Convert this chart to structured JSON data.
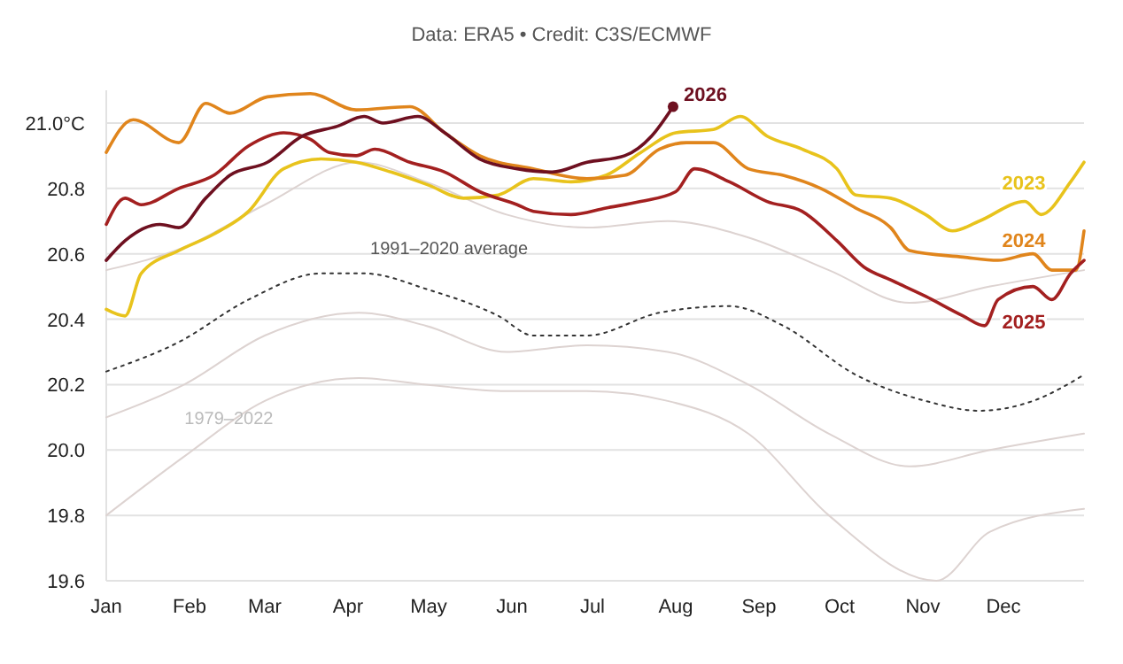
{
  "chart_data": {
    "type": "line",
    "subtitle": "Data: ERA5 • Credit: C3S/ECMWF",
    "xlim": [
      "--01-01",
      "--12-31"
    ],
    "xticks": [
      {
        "value": "--01-01",
        "label": "Jan"
      },
      {
        "value": "--02-01",
        "label": "Feb"
      },
      {
        "value": "--03-01",
        "label": "Mar"
      },
      {
        "value": "--04-01",
        "label": "Apr"
      },
      {
        "value": "--05-01",
        "label": "May"
      },
      {
        "value": "--06-01",
        "label": "Jun"
      },
      {
        "value": "--07-01",
        "label": "Jul"
      },
      {
        "value": "--08-01",
        "label": "Aug"
      },
      {
        "value": "--09-01",
        "label": "Sep"
      },
      {
        "value": "--10-01",
        "label": "Oct"
      },
      {
        "value": "--11-01",
        "label": "Nov"
      },
      {
        "value": "--12-01",
        "label": "Dec"
      }
    ],
    "ylim": [
      19.6,
      21.1
    ],
    "yticks": [
      {
        "value": 19.6,
        "label": "19.6"
      },
      {
        "value": 19.8,
        "label": "19.8"
      },
      {
        "value": 20.0,
        "label": "20.0"
      },
      {
        "value": 20.2,
        "label": "20.2"
      },
      {
        "value": 20.4,
        "label": "20.4"
      },
      {
        "value": 20.6,
        "label": "20.6"
      },
      {
        "value": 20.8,
        "label": "20.8"
      },
      {
        "value": 21.0,
        "label": "21.0°C"
      }
    ],
    "grid": "y",
    "annotations": [
      "1991–2020 average",
      "1979–2022"
    ],
    "series": [
      {
        "color": "#ddd3d1",
        "x": [
          "--01-01",
          "--01-30",
          "--03-01",
          "--04-05",
          "--04-30",
          "--05-30",
          "--06-29",
          "--07-29",
          "--08-28",
          "--09-27",
          "--10-27",
          "--11-26",
          "--12-31"
        ],
        "values": [
          20.55,
          20.62,
          20.75,
          20.88,
          20.82,
          20.72,
          20.68,
          20.7,
          20.65,
          20.55,
          20.45,
          20.5,
          20.55
        ]
      },
      {
        "color": "#ddd3d1",
        "x": [
          "--01-01",
          "--01-30",
          "--03-01",
          "--04-05",
          "--04-30",
          "--05-30",
          "--06-29",
          "--07-29",
          "--08-28",
          "--09-27",
          "--10-27",
          "--11-26",
          "--12-31"
        ],
        "values": [
          20.1,
          20.2,
          20.35,
          20.42,
          20.38,
          20.3,
          20.32,
          20.3,
          20.2,
          20.05,
          19.95,
          20.0,
          20.05
        ]
      },
      {
        "color": "#ddd3d1",
        "x": [
          "--01-01",
          "--01-30",
          "--03-01",
          "--04-05",
          "--04-30",
          "--05-30",
          "--06-29",
          "--07-29",
          "--08-28",
          "--09-27",
          "--11-06",
          "--11-26",
          "--12-31"
        ],
        "values": [
          19.8,
          19.98,
          20.15,
          20.22,
          20.2,
          20.18,
          20.18,
          20.15,
          20.05,
          19.8,
          19.6,
          19.75,
          19.82
        ]
      },
      {
        "color": "#333333",
        "line_style": "dotted",
        "x": [
          "--01-01",
          "--01-28",
          "--02-23",
          "--03-22",
          "--04-07",
          "--05-01",
          "--05-27",
          "--06-09",
          "--06-29",
          "--07-26",
          "--08-21",
          "--09-10",
          "--10-07",
          "--11-02",
          "--11-22",
          "--12-12",
          "--12-31"
        ],
        "values": [
          20.24,
          20.33,
          20.46,
          20.54,
          20.54,
          20.49,
          20.41,
          20.35,
          20.35,
          20.42,
          20.44,
          20.38,
          20.23,
          20.15,
          20.12,
          20.15,
          20.23
        ]
      },
      {
        "name": "2023",
        "color": "#e8c31c",
        "x": [
          "--01-01",
          "--01-08",
          "--01-14",
          "--01-28",
          "--02-10",
          "--02-23",
          "--03-08",
          "--03-22",
          "--04-04",
          "--04-17",
          "--05-01",
          "--05-14",
          "--05-27",
          "--06-09",
          "--06-23",
          "--07-06",
          "--07-19",
          "--08-01",
          "--08-15",
          "--08-25",
          "--09-04",
          "--09-17",
          "--09-30",
          "--10-07",
          "--10-20",
          "--11-02",
          "--11-12",
          "--11-22",
          "--12-09",
          "--12-15",
          "--12-26",
          "--12-31"
        ],
        "values": [
          20.43,
          20.41,
          20.54,
          20.61,
          20.66,
          20.73,
          20.86,
          20.89,
          20.88,
          20.85,
          20.81,
          20.77,
          20.78,
          20.83,
          20.82,
          20.84,
          20.91,
          20.97,
          20.98,
          21.02,
          20.96,
          20.92,
          20.86,
          20.78,
          20.77,
          20.72,
          20.67,
          20.7,
          20.76,
          20.72,
          20.82,
          20.88
        ]
      },
      {
        "name": "2024",
        "color": "#e0851c",
        "x": [
          "--01-01",
          "--01-11",
          "--01-28",
          "--02-07",
          "--02-16",
          "--03-02",
          "--03-18",
          "--04-04",
          "--04-24",
          "--05-07",
          "--05-20",
          "--06-09",
          "--06-29",
          "--07-13",
          "--07-26",
          "--08-05",
          "--08-15",
          "--08-28",
          "--09-10",
          "--09-24",
          "--10-07",
          "--10-20",
          "--10-27",
          "--11-16",
          "--11-29",
          "--12-12",
          "--12-19",
          "--12-28",
          "--12-31"
        ],
        "values": [
          20.91,
          21.01,
          20.94,
          21.06,
          21.03,
          21.08,
          21.09,
          21.04,
          21.05,
          20.97,
          20.9,
          20.86,
          20.83,
          20.84,
          20.92,
          20.94,
          20.94,
          20.86,
          20.84,
          20.8,
          20.74,
          20.68,
          20.61,
          20.59,
          20.58,
          20.6,
          20.55,
          20.55,
          20.67
        ]
      },
      {
        "name": "2025",
        "color": "#a32020",
        "x": [
          "--01-01",
          "--01-08",
          "--01-14",
          "--01-28",
          "--02-10",
          "--02-23",
          "--03-08",
          "--03-18",
          "--03-25",
          "--04-04",
          "--04-11",
          "--04-24",
          "--05-07",
          "--05-20",
          "--06-03",
          "--06-09",
          "--06-23",
          "--07-06",
          "--07-19",
          "--08-01",
          "--08-08",
          "--08-21",
          "--09-04",
          "--09-17",
          "--09-30",
          "--10-10",
          "--10-20",
          "--11-02",
          "--11-16",
          "--11-24",
          "--11-29",
          "--12-12",
          "--12-19",
          "--12-26",
          "--12-31"
        ],
        "values": [
          20.69,
          20.77,
          20.75,
          20.8,
          20.84,
          20.93,
          20.97,
          20.95,
          20.91,
          20.9,
          20.92,
          20.88,
          20.85,
          20.79,
          20.75,
          20.73,
          20.72,
          20.74,
          20.76,
          20.79,
          20.86,
          20.82,
          20.76,
          20.73,
          20.64,
          20.56,
          20.52,
          20.47,
          20.41,
          20.38,
          20.46,
          20.5,
          20.46,
          20.54,
          20.58
        ]
      },
      {
        "name": "2026",
        "color": "#6e1020",
        "x": [
          "--01-01",
          "--01-08",
          "--01-21",
          "--01-28",
          "--02-07",
          "--02-16",
          "--03-02",
          "--03-15",
          "--03-28",
          "--04-07",
          "--04-14",
          "--04-27",
          "--05-07",
          "--05-20",
          "--06-03",
          "--06-16",
          "--06-29",
          "--07-13",
          "--07-23",
          "--07-31"
        ],
        "values": [
          20.58,
          20.64,
          20.69,
          20.68,
          20.77,
          20.84,
          20.88,
          20.96,
          20.99,
          21.02,
          21.0,
          21.02,
          20.97,
          20.89,
          20.86,
          20.85,
          20.88,
          20.9,
          20.96,
          21.05
        ]
      }
    ]
  }
}
